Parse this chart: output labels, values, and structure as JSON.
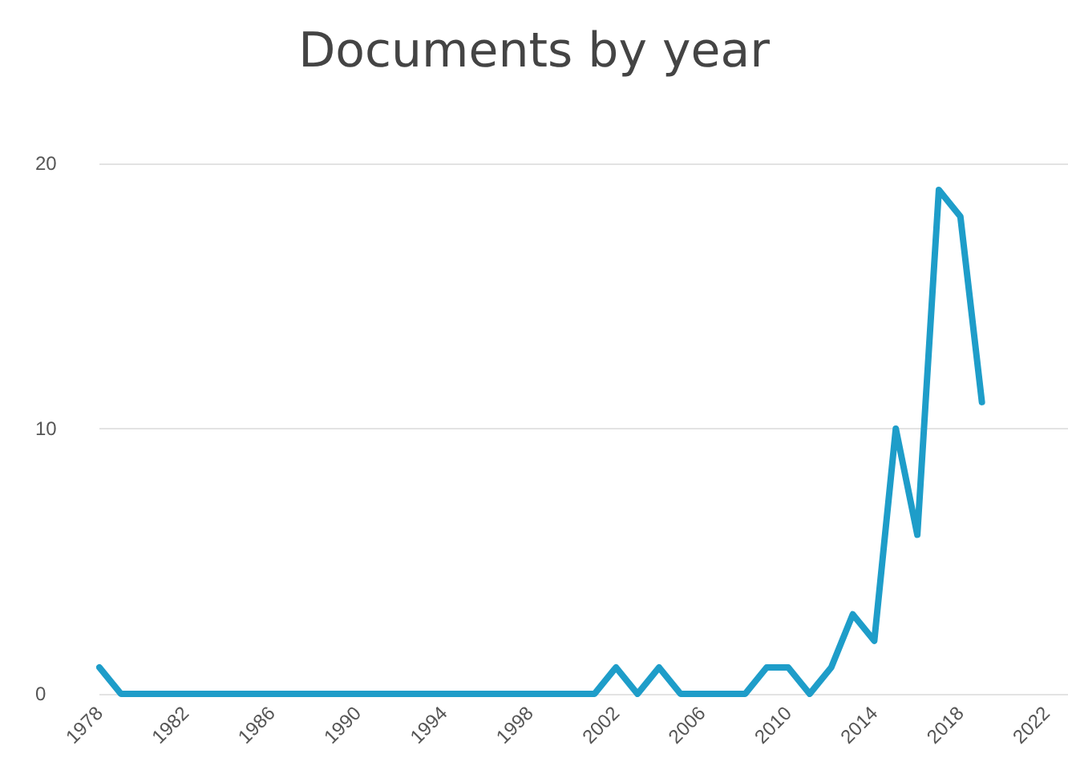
{
  "chart_data": {
    "type": "line",
    "title": "Documents by year",
    "x": [
      1978,
      1979,
      1980,
      1981,
      1982,
      1983,
      1984,
      1985,
      1986,
      1987,
      1988,
      1989,
      1990,
      1991,
      1992,
      1993,
      1994,
      1995,
      1996,
      1997,
      1998,
      1999,
      2000,
      2001,
      2002,
      2003,
      2004,
      2005,
      2006,
      2007,
      2008,
      2009,
      2010,
      2011,
      2012,
      2013,
      2014,
      2015,
      2016,
      2017,
      2018,
      2019
    ],
    "series": [
      {
        "color": "#1e9dc9",
        "values": [
          1,
          0,
          0,
          0,
          0,
          0,
          0,
          0,
          0,
          0,
          0,
          0,
          0,
          0,
          0,
          0,
          0,
          0,
          0,
          0,
          0,
          0,
          0,
          0,
          1,
          0,
          1,
          0,
          0,
          0,
          0,
          1,
          1,
          0,
          1,
          3,
          2,
          10,
          6,
          19,
          18,
          11
        ]
      }
    ],
    "xlim": [
      1978,
      2023
    ],
    "xticks": [
      1978,
      1982,
      1986,
      1990,
      1994,
      1998,
      2002,
      2006,
      2010,
      2014,
      2018,
      2022
    ],
    "ylim": [
      0,
      20
    ],
    "yticks": [
      0,
      10,
      20
    ],
    "grid": "y",
    "marker": "none",
    "line_style": "solid"
  }
}
